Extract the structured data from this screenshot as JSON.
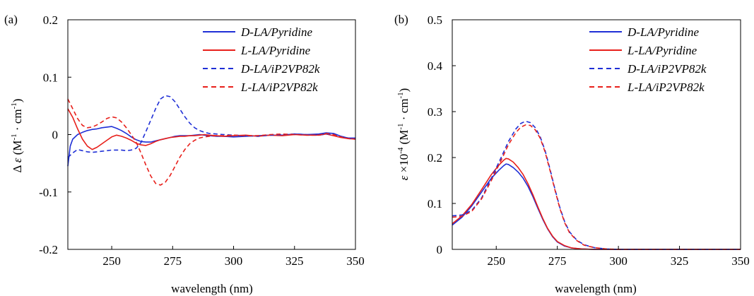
{
  "chart_data": [
    {
      "type": "line",
      "panel_label": "(a)",
      "xlabel": "wavelength (nm)",
      "ylabel": {
        "prefix": "Δ ",
        "symbol": "ε",
        "unit_pre": " (M",
        "sup1": "-1",
        "unit_mid": " · cm",
        "sup2": "-1",
        "unit_post": ")"
      },
      "xlim": [
        232,
        350
      ],
      "ylim": [
        -0.2,
        0.2
      ],
      "xticks": [
        250,
        275,
        300,
        325,
        350
      ],
      "xtick_labels": [
        "250",
        "275",
        "300",
        "325",
        "350"
      ],
      "yticks": [
        -0.2,
        -0.1,
        0,
        0.1,
        0.2
      ],
      "ytick_labels": [
        "-0.2",
        "-0.1",
        "0",
        "0.1",
        "0.2"
      ],
      "grid": false,
      "legend_position": "top-right",
      "series": [
        {
          "name": "D-LA/Pyridine",
          "legend": {
            "prefix": "D",
            "rest": "-LA/Pyridine"
          },
          "color": "#1f2fd6",
          "dash": "solid",
          "x": [
            232,
            233,
            234,
            236,
            238,
            240,
            242,
            244,
            246,
            248,
            250,
            252,
            254,
            256,
            258,
            260,
            262,
            264,
            266,
            268,
            270,
            272,
            274,
            276,
            278,
            280,
            282,
            284,
            286,
            288,
            290,
            293,
            296,
            300,
            305,
            310,
            315,
            320,
            325,
            330,
            335,
            338,
            341,
            344,
            347,
            350
          ],
          "y": [
            -0.055,
            -0.02,
            -0.008,
            0.0,
            0.004,
            0.007,
            0.009,
            0.01,
            0.012,
            0.013,
            0.014,
            0.011,
            0.007,
            0.002,
            -0.004,
            -0.009,
            -0.012,
            -0.013,
            -0.013,
            -0.011,
            -0.009,
            -0.007,
            -0.005,
            -0.003,
            -0.002,
            -0.002,
            -0.002,
            -0.001,
            0.0,
            -0.001,
            -0.002,
            -0.003,
            -0.003,
            -0.004,
            -0.003,
            -0.002,
            -0.001,
            -0.001,
            0.001,
            0.0,
            0.001,
            0.003,
            0.002,
            -0.003,
            -0.006,
            -0.006
          ]
        },
        {
          "name": "L-LA/Pyridine",
          "legend": {
            "prefix": "L",
            "rest": "-LA/Pyridine"
          },
          "color": "#e8201b",
          "dash": "solid",
          "x": [
            232,
            234,
            236,
            238,
            240,
            242,
            244,
            246,
            248,
            250,
            252,
            254,
            256,
            258,
            260,
            262,
            264,
            266,
            268,
            270,
            272,
            274,
            276,
            278,
            280,
            282,
            284,
            286,
            288,
            290,
            293,
            296,
            300,
            305,
            310,
            315,
            320,
            325,
            330,
            335,
            338,
            341,
            344,
            347,
            350
          ],
          "y": [
            0.045,
            0.03,
            0.01,
            -0.008,
            -0.02,
            -0.026,
            -0.022,
            -0.016,
            -0.01,
            -0.004,
            -0.001,
            -0.003,
            -0.006,
            -0.01,
            -0.015,
            -0.018,
            -0.019,
            -0.016,
            -0.012,
            -0.009,
            -0.007,
            -0.005,
            -0.004,
            -0.003,
            -0.003,
            -0.002,
            -0.002,
            -0.001,
            0.0,
            -0.001,
            -0.002,
            -0.003,
            -0.002,
            -0.001,
            -0.003,
            -0.001,
            -0.002,
            0.0,
            -0.001,
            -0.001,
            0.001,
            -0.002,
            -0.005,
            -0.007,
            -0.008
          ]
        },
        {
          "name": "D-LA/iP2VP82k",
          "legend": {
            "prefix": "D",
            "rest": "-LA/iP2VP82k"
          },
          "color": "#1f2fd6",
          "dash": "dashed",
          "x": [
            232,
            234,
            236,
            238,
            240,
            242,
            244,
            246,
            248,
            250,
            252,
            254,
            256,
            258,
            260,
            262,
            264,
            266,
            268,
            270,
            272,
            274,
            276,
            278,
            280,
            282,
            284,
            286,
            288,
            290,
            293,
            296,
            300,
            305,
            310,
            315,
            320,
            325,
            330,
            335,
            338,
            341,
            344,
            347,
            350
          ],
          "y": [
            -0.04,
            -0.032,
            -0.026,
            -0.028,
            -0.03,
            -0.031,
            -0.03,
            -0.029,
            -0.028,
            -0.027,
            -0.027,
            -0.027,
            -0.028,
            -0.027,
            -0.024,
            -0.014,
            0.005,
            0.025,
            0.045,
            0.062,
            0.068,
            0.066,
            0.057,
            0.044,
            0.031,
            0.02,
            0.012,
            0.007,
            0.004,
            0.002,
            0.001,
            0.0,
            -0.001,
            -0.002,
            -0.003,
            -0.001,
            0.0,
            0.001,
            0.0,
            -0.001,
            0.001,
            0.0,
            -0.003,
            -0.006,
            -0.008
          ]
        },
        {
          "name": "L-LA/iP2VP82k",
          "legend": {
            "prefix": "L",
            "rest": "-LA/iP2VP82k"
          },
          "color": "#e8201b",
          "dash": "dashed",
          "x": [
            232,
            234,
            236,
            238,
            240,
            242,
            244,
            246,
            248,
            250,
            252,
            254,
            256,
            258,
            260,
            262,
            264,
            266,
            268,
            270,
            272,
            274,
            276,
            278,
            280,
            282,
            284,
            286,
            288,
            290,
            293,
            296,
            300,
            305,
            310,
            315,
            320,
            325,
            330,
            335,
            338,
            341,
            344,
            347,
            350
          ],
          "y": [
            0.062,
            0.045,
            0.028,
            0.016,
            0.012,
            0.013,
            0.017,
            0.022,
            0.028,
            0.031,
            0.029,
            0.022,
            0.012,
            0.0,
            -0.013,
            -0.032,
            -0.053,
            -0.072,
            -0.085,
            -0.088,
            -0.083,
            -0.071,
            -0.055,
            -0.039,
            -0.026,
            -0.016,
            -0.01,
            -0.006,
            -0.004,
            -0.003,
            -0.002,
            -0.002,
            -0.001,
            -0.002,
            -0.002,
            0.0,
            0.001,
            0.0,
            -0.001,
            -0.001,
            0.002,
            0.0,
            -0.004,
            -0.007,
            -0.008
          ]
        }
      ]
    },
    {
      "type": "line",
      "panel_label": "(b)",
      "xlabel": "wavelength (nm)",
      "ylabel": {
        "prefix": "",
        "symbol": "ε",
        "unit_pre": " ×10",
        "sup1": "-4",
        "unit_mid": " (M",
        "sup2": "-1",
        "unit_post": " · cm",
        "sup3": "-1",
        "unit_end": ")"
      },
      "xlim": [
        232,
        350
      ],
      "ylim": [
        0,
        0.5
      ],
      "xticks": [
        250,
        275,
        300,
        325,
        350
      ],
      "xtick_labels": [
        "250",
        "275",
        "300",
        "325",
        "350"
      ],
      "yticks": [
        0,
        0.1,
        0.2,
        0.3,
        0.4,
        0.5
      ],
      "ytick_labels": [
        "0",
        "0.1",
        "0.2",
        "0.3",
        "0.4",
        "0.5"
      ],
      "grid": false,
      "legend_position": "top-right",
      "series": [
        {
          "name": "D-LA/Pyridine",
          "legend": {
            "prefix": "D",
            "rest": "-LA/Pyridine"
          },
          "color": "#1f2fd6",
          "dash": "solid",
          "x": [
            232,
            236,
            240,
            244,
            248,
            251,
            253,
            254,
            255,
            257,
            259,
            261,
            263,
            265,
            267,
            269,
            271,
            273,
            275,
            278,
            281,
            285,
            290,
            300,
            320,
            350
          ],
          "y": [
            0.053,
            0.07,
            0.095,
            0.125,
            0.155,
            0.172,
            0.182,
            0.186,
            0.185,
            0.178,
            0.168,
            0.155,
            0.137,
            0.115,
            0.09,
            0.066,
            0.045,
            0.028,
            0.016,
            0.007,
            0.003,
            0.001,
            0.0,
            0.0,
            0.0,
            0.0
          ]
        },
        {
          "name": "L-LA/Pyridine",
          "legend": {
            "prefix": "L",
            "rest": "-LA/Pyridine"
          },
          "color": "#e8201b",
          "dash": "solid",
          "x": [
            232,
            236,
            240,
            244,
            248,
            251,
            253,
            254,
            255,
            257,
            259,
            261,
            263,
            265,
            267,
            269,
            271,
            273,
            275,
            278,
            281,
            285,
            290,
            300,
            320,
            350
          ],
          "y": [
            0.056,
            0.073,
            0.098,
            0.13,
            0.163,
            0.183,
            0.194,
            0.198,
            0.197,
            0.19,
            0.178,
            0.163,
            0.143,
            0.119,
            0.093,
            0.068,
            0.046,
            0.029,
            0.017,
            0.008,
            0.003,
            0.001,
            0.0,
            0.0,
            0.0,
            0.0
          ]
        },
        {
          "name": "D-LA/iP2VP82k",
          "legend": {
            "prefix": "D",
            "rest": "-LA/iP2VP82k"
          },
          "color": "#1f2fd6",
          "dash": "dashed",
          "x": [
            232,
            236,
            240,
            244,
            248,
            252,
            255,
            258,
            260,
            262,
            264,
            266,
            268,
            270,
            272,
            274,
            276,
            278,
            280,
            283,
            286,
            290,
            295,
            300,
            310,
            320,
            350
          ],
          "y": [
            0.073,
            0.075,
            0.085,
            0.112,
            0.155,
            0.2,
            0.235,
            0.262,
            0.274,
            0.279,
            0.276,
            0.265,
            0.245,
            0.215,
            0.175,
            0.132,
            0.092,
            0.06,
            0.038,
            0.02,
            0.01,
            0.004,
            0.001,
            0.0,
            0.0,
            0.0,
            0.0
          ]
        },
        {
          "name": "L-LA/iP2VP82k",
          "legend": {
            "prefix": "L",
            "rest": "-LA/iP2VP82k"
          },
          "color": "#e8201b",
          "dash": "dashed",
          "x": [
            232,
            236,
            240,
            244,
            248,
            252,
            255,
            258,
            260,
            262,
            264,
            266,
            268,
            270,
            272,
            274,
            276,
            278,
            280,
            283,
            286,
            290,
            295,
            300,
            310,
            320,
            350
          ],
          "y": [
            0.07,
            0.072,
            0.083,
            0.11,
            0.15,
            0.194,
            0.228,
            0.254,
            0.266,
            0.271,
            0.27,
            0.26,
            0.242,
            0.212,
            0.172,
            0.13,
            0.09,
            0.058,
            0.036,
            0.019,
            0.009,
            0.004,
            0.001,
            0.0,
            0.0,
            0.0,
            0.0
          ]
        }
      ]
    }
  ]
}
